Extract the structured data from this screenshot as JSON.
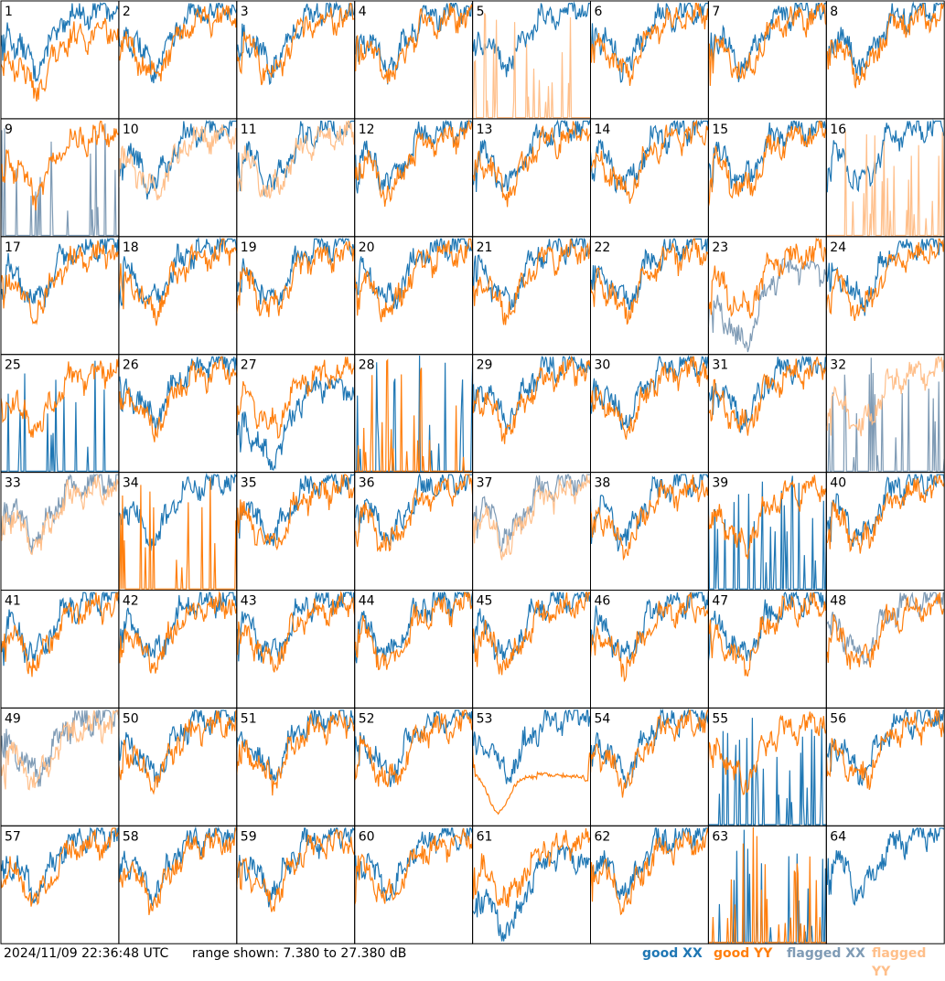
{
  "footer": {
    "timestamp": "2024/11/09 22:36:48 UTC",
    "range_text": "range shown: 7.380 to 27.380 dB"
  },
  "legend": [
    {
      "label": "good XX",
      "color": "#1f77b4"
    },
    {
      "label": "good YY",
      "color": "#ff7f0e"
    },
    {
      "label": "flagged XX",
      "color": "#7f9bb5"
    },
    {
      "label": "flagged YY",
      "color": "#ffbf8a"
    }
  ],
  "colors": {
    "good_xx": "#1f77b4",
    "good_yy": "#ff7f0e",
    "flagged_xx": "#7f9bb5",
    "flagged_yy": "#ffbf8a"
  },
  "chart_data": {
    "type": "line",
    "title": "",
    "ylabel": "dB",
    "ylim": [
      7.38,
      27.38
    ],
    "grid": false,
    "legend_placement": "bottom-right",
    "panels_layout": {
      "rows": 8,
      "cols": 8
    },
    "panels": [
      {
        "id": "1",
        "xx": "good",
        "yy": "good",
        "style": "yylow"
      },
      {
        "id": "2",
        "xx": "good",
        "yy": "good",
        "style": "normal"
      },
      {
        "id": "3",
        "xx": "good",
        "yy": "good",
        "style": "normal"
      },
      {
        "id": "4",
        "xx": "good",
        "yy": "good",
        "style": "normal"
      },
      {
        "id": "5",
        "xx": "good",
        "yy": "flagged",
        "style": "yyspikes"
      },
      {
        "id": "6",
        "xx": "good",
        "yy": "good",
        "style": "normal"
      },
      {
        "id": "7",
        "xx": "good",
        "yy": "good",
        "style": "normal"
      },
      {
        "id": "8",
        "xx": "good",
        "yy": "good",
        "style": "normal"
      },
      {
        "id": "9",
        "xx": "flagged",
        "yy": "good",
        "style": "xxspikes"
      },
      {
        "id": "10",
        "xx": "good",
        "yy": "flagged",
        "style": "normal"
      },
      {
        "id": "11",
        "xx": "good",
        "yy": "flagged",
        "style": "normal"
      },
      {
        "id": "12",
        "xx": "good",
        "yy": "good",
        "style": "normal"
      },
      {
        "id": "13",
        "xx": "good",
        "yy": "good",
        "style": "normal"
      },
      {
        "id": "14",
        "xx": "good",
        "yy": "good",
        "style": "normal"
      },
      {
        "id": "15",
        "xx": "good",
        "yy": "good",
        "style": "normal"
      },
      {
        "id": "16",
        "xx": "good",
        "yy": "flagged",
        "style": "yyspikes"
      },
      {
        "id": "17",
        "xx": "good",
        "yy": "good",
        "style": "normal"
      },
      {
        "id": "18",
        "xx": "good",
        "yy": "good",
        "style": "normal"
      },
      {
        "id": "19",
        "xx": "good",
        "yy": "good",
        "style": "normal"
      },
      {
        "id": "20",
        "xx": "good",
        "yy": "good",
        "style": "normal"
      },
      {
        "id": "21",
        "xx": "good",
        "yy": "good",
        "style": "normal"
      },
      {
        "id": "22",
        "xx": "good",
        "yy": "good",
        "style": "normal"
      },
      {
        "id": "23",
        "xx": "flagged",
        "yy": "good",
        "style": "xxlow"
      },
      {
        "id": "24",
        "xx": "good",
        "yy": "good",
        "style": "normal"
      },
      {
        "id": "25",
        "xx": "good",
        "yy": "good",
        "style": "xxspikes"
      },
      {
        "id": "26",
        "xx": "good",
        "yy": "good",
        "style": "normal"
      },
      {
        "id": "27",
        "xx": "good",
        "yy": "good",
        "style": "xxlow"
      },
      {
        "id": "28",
        "xx": "good",
        "yy": "good",
        "style": "bothspikes"
      },
      {
        "id": "29",
        "xx": "good",
        "yy": "good",
        "style": "normal"
      },
      {
        "id": "30",
        "xx": "good",
        "yy": "good",
        "style": "normal"
      },
      {
        "id": "31",
        "xx": "good",
        "yy": "good",
        "style": "normal"
      },
      {
        "id": "32",
        "xx": "flagged",
        "yy": "flagged",
        "style": "xxspikes"
      },
      {
        "id": "33",
        "xx": "flagged",
        "yy": "flagged",
        "style": "normal"
      },
      {
        "id": "34",
        "xx": "good",
        "yy": "good",
        "style": "yyspikes"
      },
      {
        "id": "35",
        "xx": "good",
        "yy": "good",
        "style": "normal"
      },
      {
        "id": "36",
        "xx": "good",
        "yy": "good",
        "style": "normal"
      },
      {
        "id": "37",
        "xx": "flagged",
        "yy": "flagged",
        "style": "normal"
      },
      {
        "id": "38",
        "xx": "good",
        "yy": "good",
        "style": "normal"
      },
      {
        "id": "39",
        "xx": "good",
        "yy": "good",
        "style": "xxspikes"
      },
      {
        "id": "40",
        "xx": "good",
        "yy": "good",
        "style": "normal"
      },
      {
        "id": "41",
        "xx": "good",
        "yy": "good",
        "style": "normal"
      },
      {
        "id": "42",
        "xx": "good",
        "yy": "good",
        "style": "normal"
      },
      {
        "id": "43",
        "xx": "good",
        "yy": "good",
        "style": "normal"
      },
      {
        "id": "44",
        "xx": "good",
        "yy": "good",
        "style": "normal"
      },
      {
        "id": "45",
        "xx": "good",
        "yy": "good",
        "style": "normal"
      },
      {
        "id": "46",
        "xx": "good",
        "yy": "good",
        "style": "normal"
      },
      {
        "id": "47",
        "xx": "good",
        "yy": "good",
        "style": "normal"
      },
      {
        "id": "48",
        "xx": "flagged",
        "yy": "good",
        "style": "normal"
      },
      {
        "id": "49",
        "xx": "flagged",
        "yy": "flagged",
        "style": "normal"
      },
      {
        "id": "50",
        "xx": "good",
        "yy": "good",
        "style": "normal"
      },
      {
        "id": "51",
        "xx": "good",
        "yy": "good",
        "style": "normal"
      },
      {
        "id": "52",
        "xx": "good",
        "yy": "good",
        "style": "normal"
      },
      {
        "id": "53",
        "xx": "good",
        "yy": "good",
        "style": "yybowl"
      },
      {
        "id": "54",
        "xx": "good",
        "yy": "good",
        "style": "normal"
      },
      {
        "id": "55",
        "xx": "good",
        "yy": "good",
        "style": "xxspikes"
      },
      {
        "id": "56",
        "xx": "good",
        "yy": "good",
        "style": "normal"
      },
      {
        "id": "57",
        "xx": "good",
        "yy": "good",
        "style": "normal"
      },
      {
        "id": "58",
        "xx": "good",
        "yy": "good",
        "style": "normal"
      },
      {
        "id": "59",
        "xx": "good",
        "yy": "good",
        "style": "normal"
      },
      {
        "id": "60",
        "xx": "good",
        "yy": "good",
        "style": "normal"
      },
      {
        "id": "61",
        "xx": "good",
        "yy": "good",
        "style": "xxlow"
      },
      {
        "id": "62",
        "xx": "good",
        "yy": "good",
        "style": "normal"
      },
      {
        "id": "63",
        "xx": "good",
        "yy": "good",
        "style": "bothspikes"
      },
      {
        "id": "64",
        "xx": "good",
        "yy": "good",
        "style": "xxonly"
      }
    ]
  }
}
